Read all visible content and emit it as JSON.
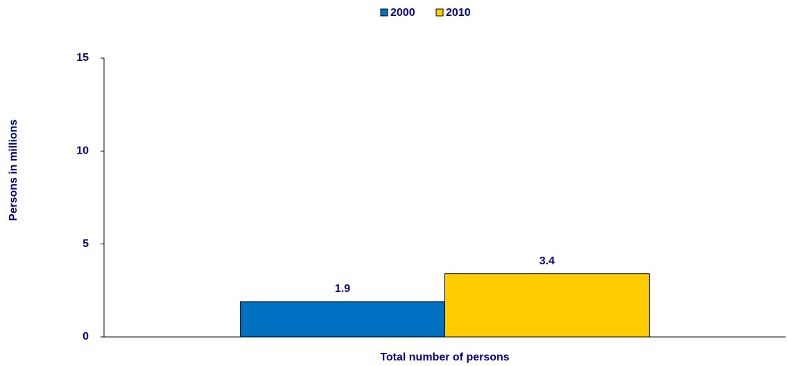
{
  "chart_data": {
    "type": "bar",
    "categories": [
      "Total number of persons"
    ],
    "series": [
      {
        "name": "2000",
        "color": "#0070c0",
        "values": [
          1.9
        ]
      },
      {
        "name": "2010",
        "color": "#ffcc00",
        "values": [
          3.4
        ]
      }
    ],
    "ylabel": "Persons in millions",
    "ylim": [
      0,
      15
    ],
    "yticks": [
      0,
      5,
      10,
      15
    ],
    "legend": "top"
  }
}
